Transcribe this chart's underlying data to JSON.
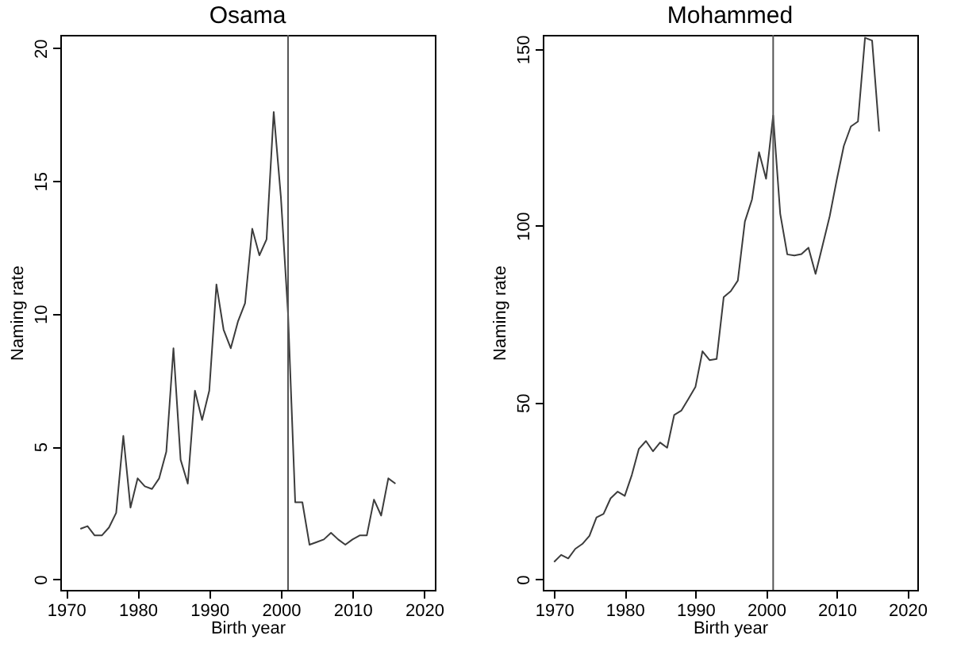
{
  "chart_data": [
    {
      "type": "line",
      "title": "Osama",
      "xlabel": "Birth year",
      "ylabel": "Naming rate",
      "color": "#3c3c3c",
      "x": [
        1972,
        1973,
        1974,
        1975,
        1976,
        1977,
        1978,
        1979,
        1980,
        1981,
        1982,
        1983,
        1984,
        1985,
        1986,
        1987,
        1988,
        1989,
        1990,
        1991,
        1992,
        1993,
        1994,
        1995,
        1996,
        1997,
        1998,
        1999,
        2000,
        2001,
        2002,
        2003,
        2004,
        2005,
        2006,
        2007,
        2008,
        2009,
        2010,
        2011,
        2012,
        2013,
        2014,
        2015,
        2016
      ],
      "values": [
        1.9,
        2.0,
        1.65,
        1.65,
        1.95,
        2.5,
        5.4,
        2.7,
        3.8,
        3.5,
        3.4,
        3.8,
        4.8,
        8.7,
        4.5,
        3.6,
        7.1,
        6.0,
        7.1,
        11.1,
        9.4,
        8.7,
        9.7,
        10.4,
        13.2,
        12.2,
        12.8,
        17.6,
        14.4,
        10.0,
        2.9,
        2.9,
        1.3,
        1.4,
        1.5,
        1.75,
        1.5,
        1.3,
        1.5,
        1.65,
        1.65,
        3.0,
        2.4,
        3.8,
        3.6
      ],
      "xlim": [
        1969.2,
        2021.5
      ],
      "xticks": [
        1970,
        1980,
        1990,
        2000,
        2010,
        2020
      ],
      "ylim": [
        -0.4,
        20.5
      ],
      "yticks": [
        0,
        5,
        10,
        15,
        20
      ],
      "ref_lines": [
        {
          "axis": "x",
          "value": 2001,
          "color": "#555555"
        }
      ]
    },
    {
      "type": "line",
      "title": "Mohammed",
      "xlabel": "Birth year",
      "ylabel": "Naming rate",
      "color": "#3c3c3c",
      "x": [
        1970,
        1971,
        1972,
        1973,
        1974,
        1975,
        1976,
        1977,
        1978,
        1979,
        1980,
        1981,
        1982,
        1983,
        1984,
        1985,
        1986,
        1987,
        1988,
        1989,
        1990,
        1991,
        1992,
        1993,
        1994,
        1995,
        1996,
        1997,
        1998,
        1999,
        2000,
        2001,
        2002,
        2003,
        2004,
        2005,
        2006,
        2007,
        2008,
        2009,
        2010,
        2011,
        2012,
        2013,
        2014,
        2015,
        2016
      ],
      "values": [
        4.9,
        6.9,
        5.9,
        8.6,
        10.0,
        12.3,
        17.5,
        18.5,
        22.9,
        24.8,
        23.6,
        29.5,
        36.9,
        39.1,
        36.2,
        38.7,
        37.2,
        46.5,
        47.7,
        51,
        54.4,
        64.5,
        62,
        62.3,
        79.8,
        81.5,
        84.5,
        101.2,
        107.4,
        120.8,
        113.3,
        131.2,
        103.4,
        91.9,
        91.6,
        92,
        93.8,
        86.4,
        94.5,
        102.7,
        113,
        122.6,
        128.1,
        129.5,
        153.2,
        152.4,
        126.7
      ],
      "xlim": [
        1968.4,
        2021.4
      ],
      "xticks": [
        1970,
        1980,
        1990,
        2000,
        2010,
        2020
      ],
      "ylim": [
        -3,
        154
      ],
      "yticks": [
        0,
        50,
        100,
        150
      ],
      "ref_lines": [
        {
          "axis": "x",
          "value": 2001,
          "color": "#555555"
        }
      ]
    }
  ]
}
